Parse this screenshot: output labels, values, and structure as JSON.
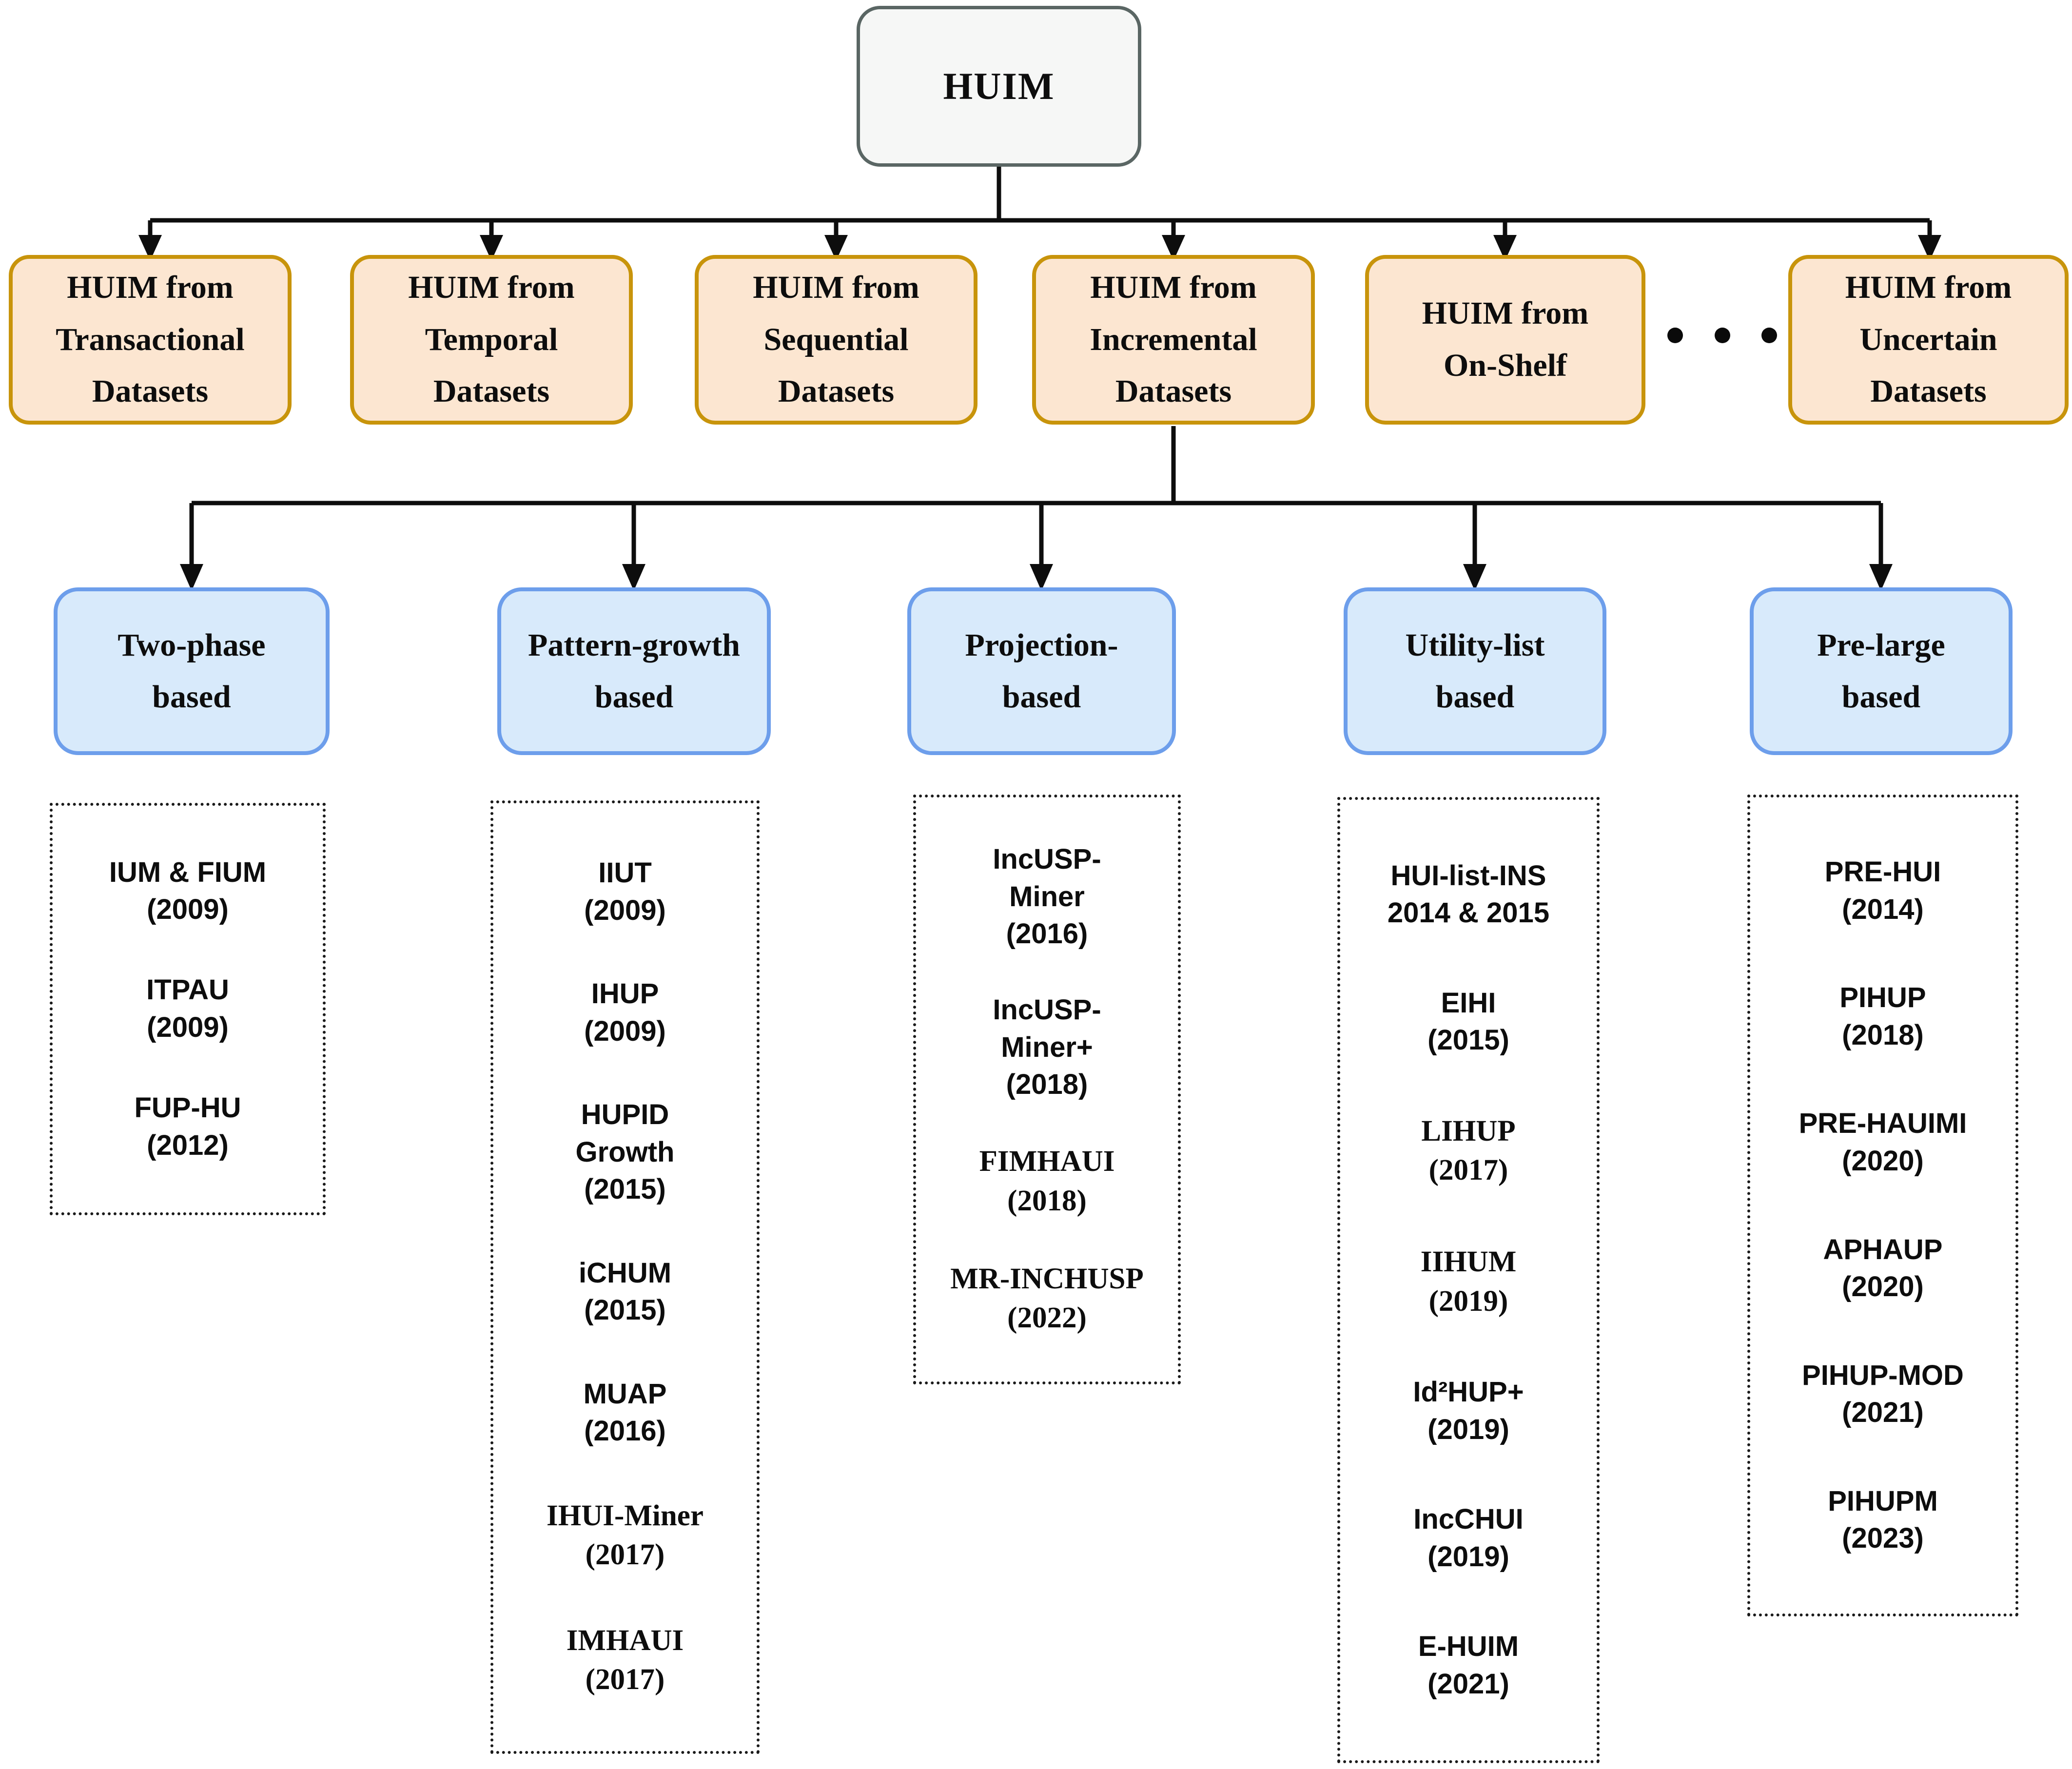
{
  "diagram": {
    "title": "HUIM taxonomy",
    "root": {
      "label": "HUIM"
    },
    "level1": [
      {
        "label": "HUIM from\nTransactional\nDatasets"
      },
      {
        "label": "HUIM from\nTemporal\nDatasets"
      },
      {
        "label": "HUIM from\nSequential\nDatasets"
      },
      {
        "label": "HUIM from\nIncremental\nDatasets"
      },
      {
        "label": "HUIM from\nOn-Shelf"
      },
      {
        "label": "HUIM from\nUncertain\nDatasets"
      }
    ],
    "ellipsis": "• • •",
    "level2": [
      {
        "label": "Two-phase\nbased",
        "items": [
          {
            "name": "IUM & FIUM",
            "year": "(2009)"
          },
          {
            "name": "ITPAU",
            "year": "(2009)"
          },
          {
            "name": "FUP-HU",
            "year": "(2012)"
          }
        ]
      },
      {
        "label": "Pattern-growth\nbased",
        "items": [
          {
            "name": "IIUT",
            "year": "(2009)"
          },
          {
            "name": "IHUP",
            "year": "(2009)"
          },
          {
            "name": "HUPID\nGrowth",
            "year": "(2015)"
          },
          {
            "name": "iCHUM",
            "year": "(2015)"
          },
          {
            "name": "MUAP",
            "year": "(2016)"
          },
          {
            "name": "IHUI-Miner",
            "year": "(2017)",
            "font": "serif"
          },
          {
            "name": "IMHAUI",
            "year": "(2017)",
            "font": "serif"
          }
        ]
      },
      {
        "label": "Projection-\nbased",
        "items": [
          {
            "name": "IncUSP-\nMiner",
            "year": "(2016)"
          },
          {
            "name": "IncUSP-\nMiner+",
            "year": "(2018)"
          },
          {
            "name": "FIMHAUI",
            "year": "(2018)",
            "font": "serif"
          },
          {
            "name": "MR-INCHUSP",
            "year": "(2022)",
            "font": "serif"
          }
        ]
      },
      {
        "label": "Utility-list\nbased",
        "items": [
          {
            "name": "HUI-list-INS",
            "year": "2014 & 2015"
          },
          {
            "name": "EIHI",
            "year": "(2015)"
          },
          {
            "name": "LIHUP",
            "year": "(2017)",
            "font": "serif"
          },
          {
            "name": "IIHUM",
            "year": "(2019)",
            "font": "serif"
          },
          {
            "name": "Id²HUP+",
            "year": "(2019)"
          },
          {
            "name": "IncCHUI",
            "year": "(2019)"
          },
          {
            "name": "E-HUIM",
            "year": "(2021)"
          }
        ]
      },
      {
        "label": "Pre-large\nbased",
        "items": [
          {
            "name": "PRE-HUI",
            "year": "(2014)"
          },
          {
            "name": "PIHUP",
            "year": "(2018)"
          },
          {
            "name": "PRE-HAUIMI",
            "year": "(2020)"
          },
          {
            "name": "APHAUP",
            "year": "(2020)"
          },
          {
            "name": "PIHUP-MOD",
            "year": "(2021)"
          },
          {
            "name": "PIHUPM",
            "year": "(2023)"
          }
        ]
      }
    ],
    "colors": {
      "root_fill": "#F6F7F6",
      "root_border": "#5A6664",
      "level1_fill": "#FCE6D1",
      "level1_border": "#C8940B",
      "level2_fill": "#D8EAFB",
      "level2_border": "#6D9EEB",
      "line": "#0d0d0d"
    }
  }
}
